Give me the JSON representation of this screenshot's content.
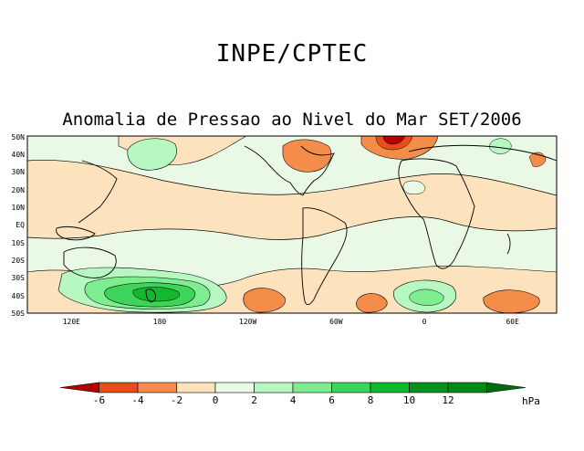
{
  "header": {
    "org": "INPE/CPTEC",
    "title": "Anomalia de Pressao ao Nivel do Mar SET/2006"
  },
  "map": {
    "lat_ticks": [
      "50N",
      "40N",
      "30N",
      "20N",
      "10N",
      "EQ",
      "10S",
      "20S",
      "30S",
      "40S",
      "50S"
    ],
    "lon_ticks": [
      "120E",
      "180",
      "120W",
      "60W",
      "0",
      "60E"
    ],
    "lon_values": [
      120,
      180,
      240,
      300,
      360,
      420
    ]
  },
  "colorbar": {
    "unit": "hPa",
    "labels": [
      "-6",
      "-4",
      "-2",
      "0",
      "2",
      "4",
      "6",
      "8",
      "10",
      "12"
    ],
    "colors": [
      "#b40000",
      "#e84e1b",
      "#f58d4a",
      "#fde3bd",
      "#e9fbe6",
      "#b6f7c2",
      "#7ded8f",
      "#3ed35a",
      "#12b82e",
      "#06931b",
      "#028a14",
      "#016b10"
    ],
    "neutral_color": "#f7fbf4"
  }
}
